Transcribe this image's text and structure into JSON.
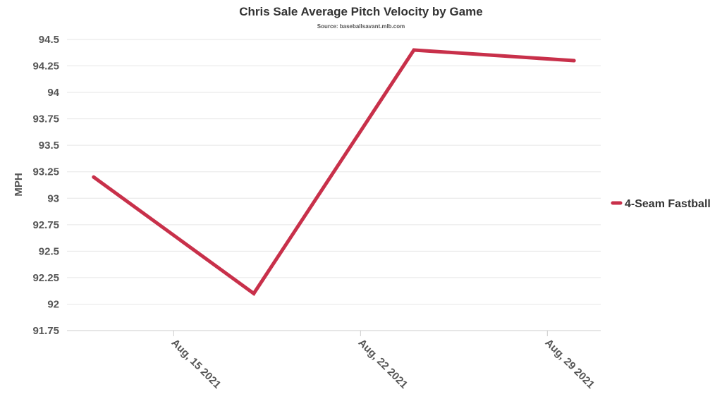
{
  "chart_data": {
    "type": "line",
    "title": "Chris Sale Average Pitch Velocity by Game",
    "subtitle": "Source: baseballsavant.mlb.com",
    "xlabel": "",
    "ylabel": "MPH",
    "x": [
      "2021-08-12",
      "2021-08-18",
      "2021-08-24",
      "2021-08-30"
    ],
    "series": [
      {
        "name": "4-Seam Fastball",
        "values": [
          93.2,
          92.1,
          94.4,
          94.3
        ],
        "color": "#c8304a"
      }
    ],
    "ylim": [
      91.75,
      94.5
    ],
    "yticks": [
      91.75,
      92,
      92.25,
      92.5,
      92.75,
      93,
      93.25,
      93.5,
      93.75,
      94,
      94.25,
      94.5
    ],
    "ytick_labels": [
      "91.75",
      "92",
      "92.25",
      "92.5",
      "92.75",
      "93",
      "93.25",
      "93.5",
      "93.75",
      "94",
      "94.25",
      "94.5"
    ],
    "xticks": [
      "2021-08-15",
      "2021-08-22",
      "2021-08-29"
    ],
    "xtick_labels": [
      "Aug, 15 2021",
      "Aug, 22 2021",
      "Aug, 29 2021"
    ],
    "grid": true,
    "legend_position": "right"
  }
}
